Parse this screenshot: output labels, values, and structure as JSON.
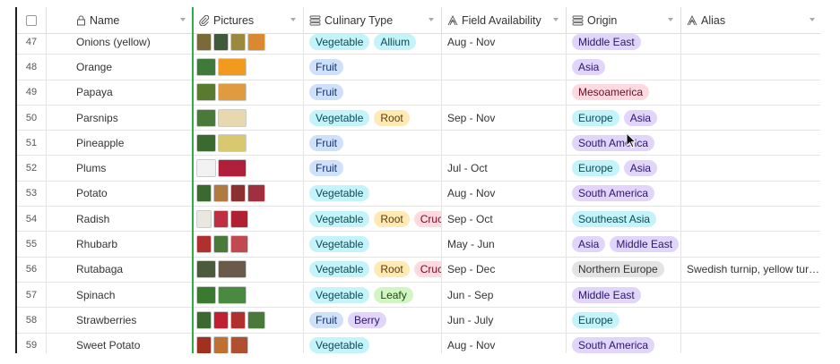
{
  "header": {
    "name": "Name",
    "pictures": "Pictures",
    "culinary": "Culinary Type",
    "field": "Field Availability",
    "origin": "Origin",
    "alias": "Alias"
  },
  "tag_colors": {
    "Vegetable": [
      "#c4f3fa",
      "#0b4b57"
    ],
    "Allium": [
      "#c4f3fa",
      "#0b4b57"
    ],
    "Fruit": [
      "#cfe0fb",
      "#123270"
    ],
    "Root": [
      "#ffeab6",
      "#5c3c00"
    ],
    "Cruci": [
      "#ffd9e0",
      "#6b0b24"
    ],
    "Leafy": [
      "#d1f6c4",
      "#1d4a10"
    ],
    "Berry": [
      "#e2d5fa",
      "#2b1570"
    ],
    "Middle East": [
      "#e2d5fa",
      "#2b1570"
    ],
    "Asia": [
      "#e2d5fa",
      "#2b1570"
    ],
    "Mesoamerica": [
      "#ffd9e0",
      "#6b0b24"
    ],
    "Europe": [
      "#c4f3fa",
      "#0b4b57"
    ],
    "South America": [
      "#e2d5fa",
      "#2b1570"
    ],
    "Southeast Asia": [
      "#c4f3fa",
      "#0b4b57"
    ],
    "Northern Europe": [
      "#e3e3e3",
      "#333333"
    ]
  },
  "rows": [
    {
      "num": "47",
      "name": "Onions (yellow)",
      "pics": [
        "#7a6a3a",
        "#3f5a3a",
        "#9a8a40",
        "#d98a30"
      ],
      "culinary": [
        "Vegetable",
        "Allium"
      ],
      "field": "Aug - Nov",
      "origin": [
        "Middle East"
      ],
      "alias": ""
    },
    {
      "num": "48",
      "name": "Orange",
      "pics": [
        "#3f7a3a",
        "#f29a20"
      ],
      "culinary": [
        "Fruit"
      ],
      "field": "",
      "origin": [
        "Asia"
      ],
      "alias": ""
    },
    {
      "num": "49",
      "name": "Papaya",
      "pics": [
        "#5a7a30",
        "#e09a40"
      ],
      "culinary": [
        "Fruit"
      ],
      "field": "",
      "origin": [
        "Mesoamerica"
      ],
      "alias": ""
    },
    {
      "num": "50",
      "name": "Parsnips",
      "pics": [
        "#4a7a3a",
        "#e8d8b0"
      ],
      "culinary": [
        "Vegetable",
        "Root"
      ],
      "field": "Sep - Nov",
      "origin": [
        "Europe",
        "Asia"
      ],
      "alias": ""
    },
    {
      "num": "51",
      "name": "Pineapple",
      "pics": [
        "#3a6a30",
        "#d8c870"
      ],
      "culinary": [
        "Fruit"
      ],
      "field": "",
      "origin": [
        "South America"
      ],
      "alias": ""
    },
    {
      "num": "52",
      "name": "Plums",
      "pics": [
        "#f2f2f2",
        "#b0203a"
      ],
      "culinary": [
        "Fruit"
      ],
      "field": "Jul - Oct",
      "origin": [
        "Europe",
        "Asia"
      ],
      "alias": ""
    },
    {
      "num": "53",
      "name": "Potato",
      "pics": [
        "#3a6a30",
        "#b07a40",
        "#8a3030",
        "#a03040"
      ],
      "culinary": [
        "Vegetable"
      ],
      "field": "Aug - Nov",
      "origin": [
        "South America"
      ],
      "alias": ""
    },
    {
      "num": "54",
      "name": "Radish",
      "pics": [
        "#e8e8e0",
        "#c03040",
        "#b02030"
      ],
      "culinary": [
        "Vegetable",
        "Root",
        "Cruci"
      ],
      "field": "Sep - Oct",
      "origin": [
        "Southeast Asia"
      ],
      "alias": ""
    },
    {
      "num": "55",
      "name": "Rhubarb",
      "pics": [
        "#b03030",
        "#4a7a3a",
        "#c04a50"
      ],
      "culinary": [
        "Vegetable"
      ],
      "field": "May - Jun",
      "origin": [
        "Asia",
        "Middle East"
      ],
      "alias": ""
    },
    {
      "num": "56",
      "name": "Rutabaga",
      "pics": [
        "#4a5a3a",
        "#6a5a4a"
      ],
      "culinary": [
        "Vegetable",
        "Root",
        "Cruci"
      ],
      "field": "Sep - Dec",
      "origin": [
        "Northern Europe"
      ],
      "alias": "Swedish turnip, yellow tur…"
    },
    {
      "num": "57",
      "name": "Spinach",
      "pics": [
        "#3a7a30",
        "#4a8a40"
      ],
      "culinary": [
        "Vegetable",
        "Leafy"
      ],
      "field": "Jun - Sep",
      "origin": [
        "Middle East"
      ],
      "alias": ""
    },
    {
      "num": "58",
      "name": "Strawberries",
      "pics": [
        "#3a6a30",
        "#c02030",
        "#b03030",
        "#4a7a3a"
      ],
      "culinary": [
        "Fruit",
        "Berry"
      ],
      "field": "Jun - July",
      "origin": [
        "Europe"
      ],
      "alias": ""
    },
    {
      "num": "59",
      "name": "Sweet Potato",
      "pics": [
        "#a03020",
        "#c07030",
        "#b05030"
      ],
      "culinary": [
        "Vegetable"
      ],
      "field": "Aug - Nov",
      "origin": [
        "South America"
      ],
      "alias": ""
    }
  ]
}
